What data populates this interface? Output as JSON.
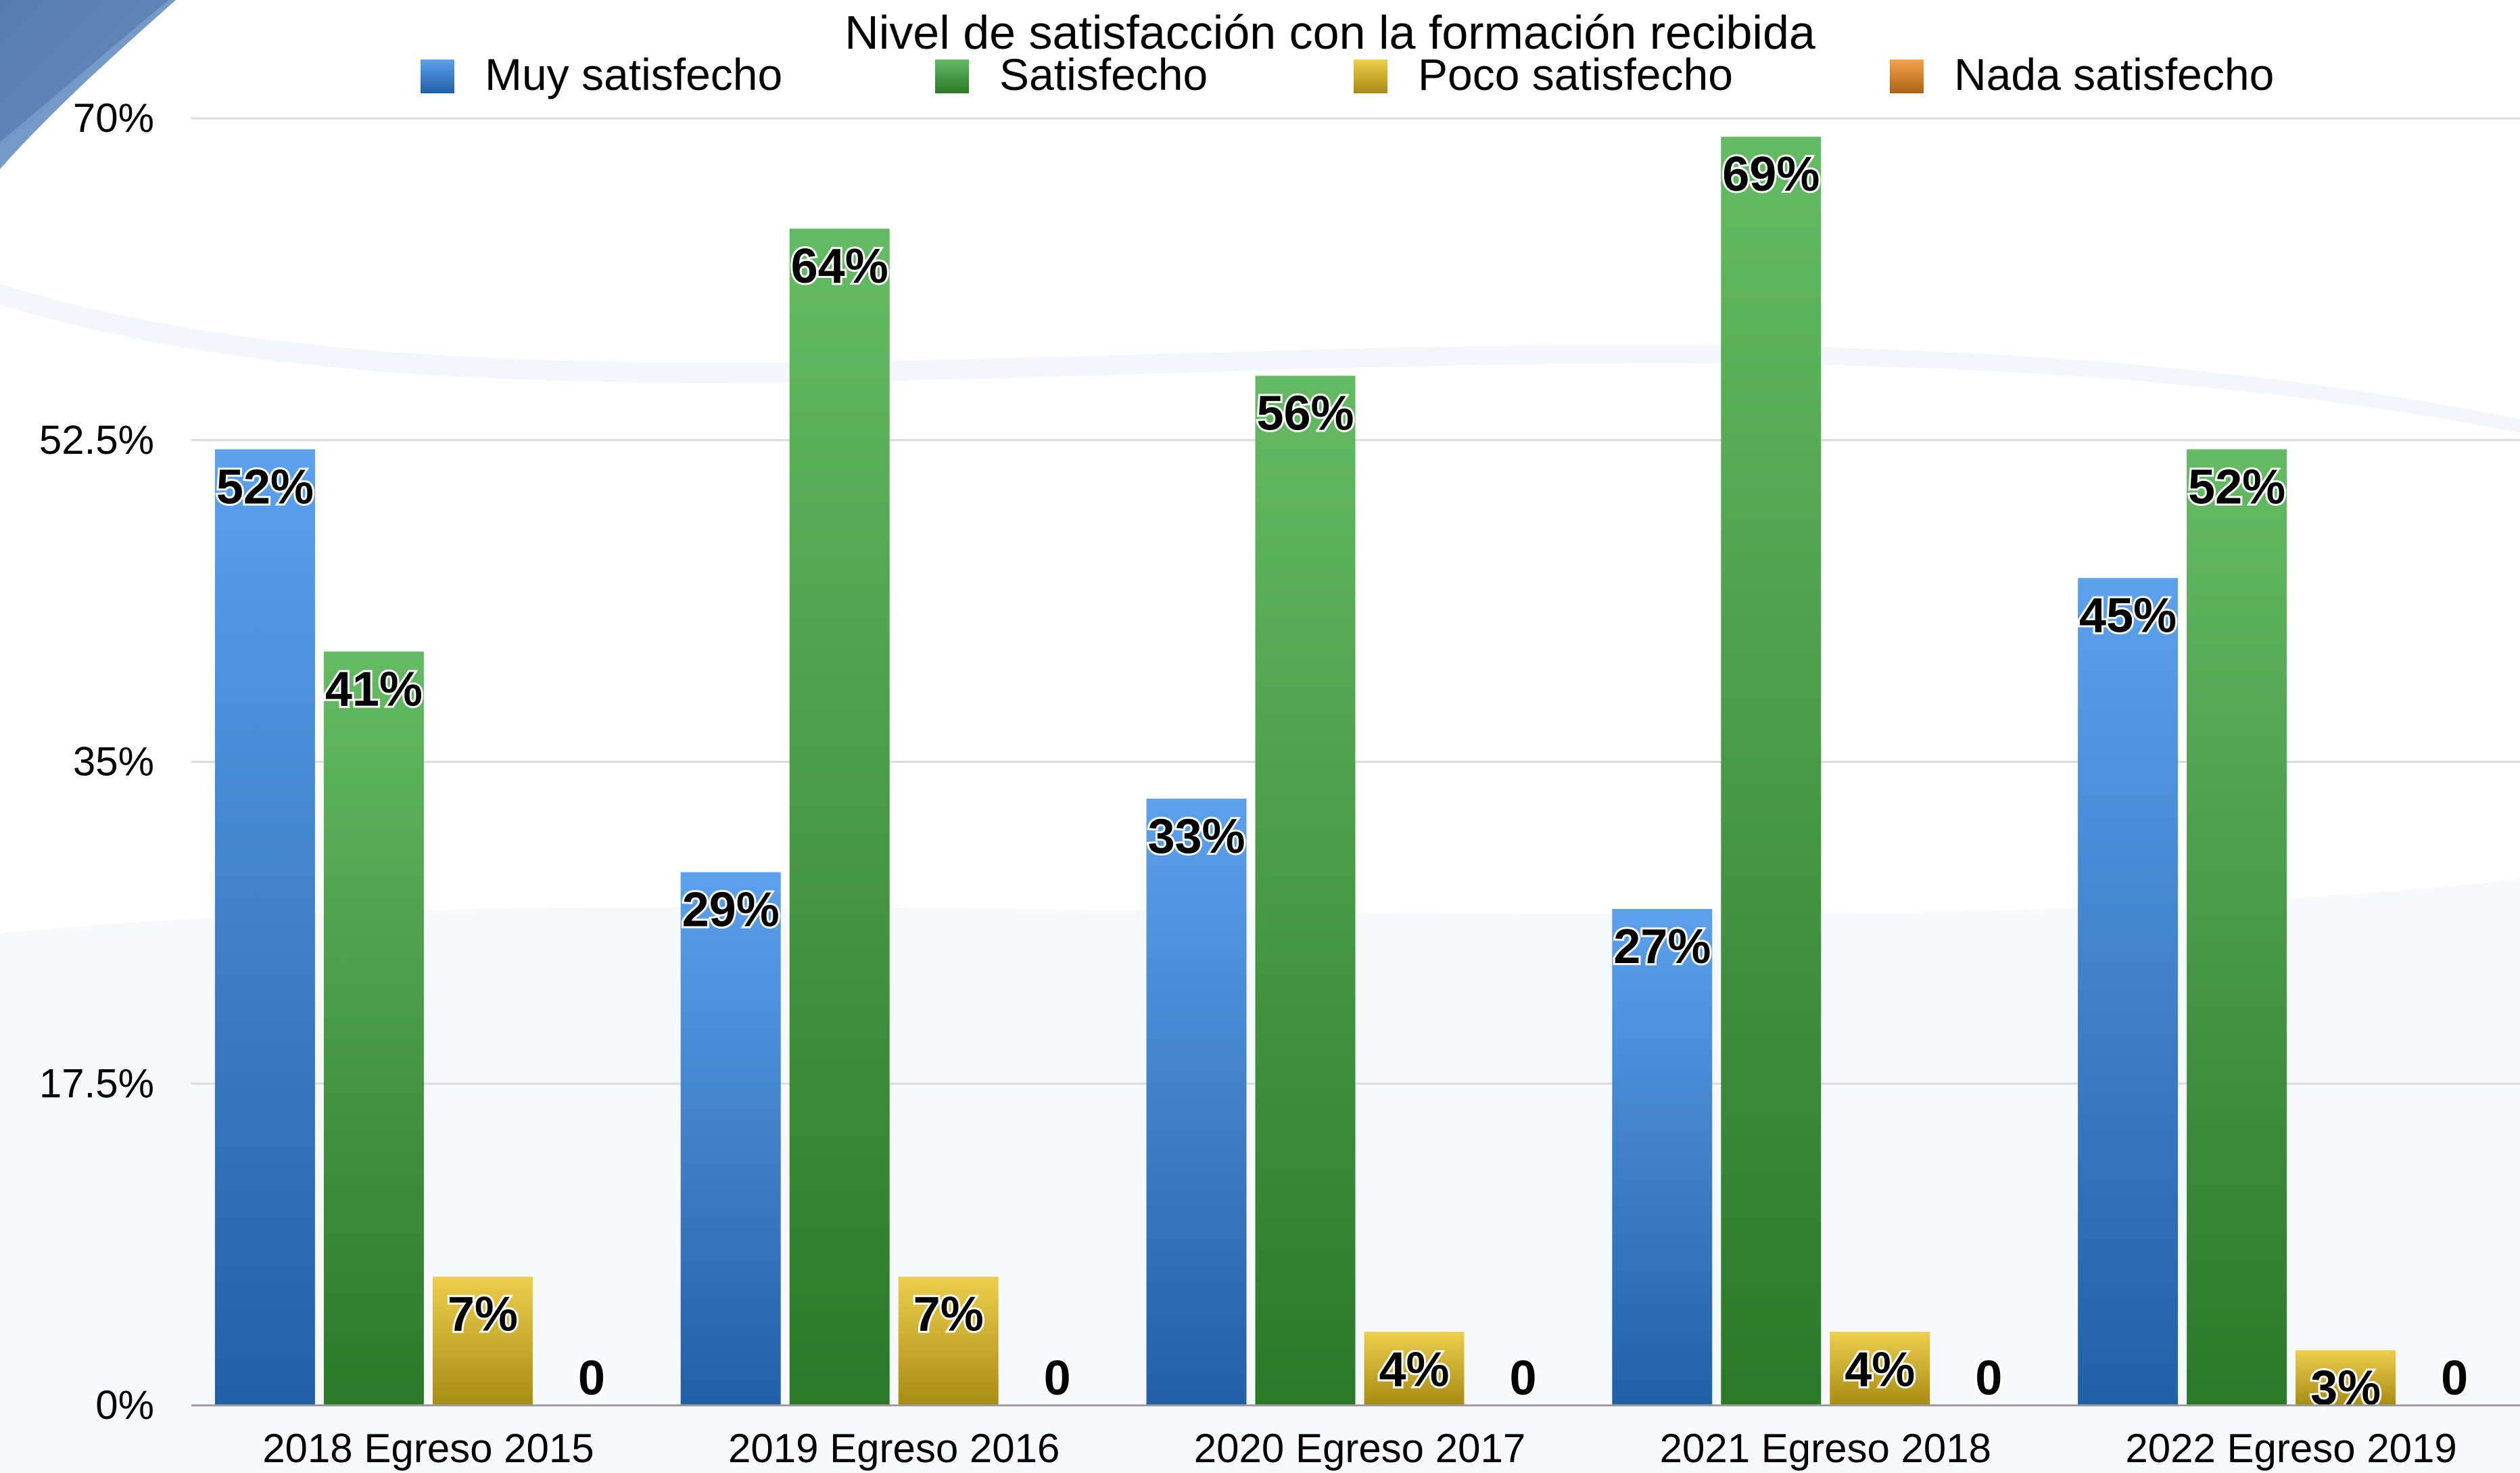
{
  "chart_data": {
    "type": "bar",
    "title": "Nivel de satisfacción con la formación recibida",
    "categories": [
      "2018 Egreso 2015",
      "2019 Egreso 2016",
      "2020 Egreso 2017",
      "2021 Egreso 2018",
      "2022 Egreso 2019"
    ],
    "series": [
      {
        "name": "Muy satisfecho",
        "color": "#2e86e8",
        "values": [
          52,
          29,
          33,
          27,
          45
        ],
        "labels": [
          "52%",
          "29%",
          "33%",
          "27%",
          "45%"
        ]
      },
      {
        "name": "Satisfecho",
        "color": "#3aa838",
        "values": [
          41,
          64,
          56,
          69,
          52
        ],
        "labels": [
          "41%",
          "64%",
          "56%",
          "69%",
          "52%"
        ]
      },
      {
        "name": "Poco satisfecho",
        "color": "#e8c21a",
        "values": [
          7,
          7,
          4,
          4,
          3
        ],
        "labels": [
          "7%",
          "7%",
          "4%",
          "4%",
          "3%"
        ]
      },
      {
        "name": "Nada satisfecho",
        "color": "#f08a1a",
        "values": [
          0,
          0,
          0,
          0,
          0
        ],
        "labels": [
          "0",
          "0",
          "0",
          "0",
          "0"
        ]
      }
    ],
    "ylim": [
      0,
      70
    ],
    "yticks": [
      0,
      17.5,
      35,
      52.5,
      70
    ],
    "ytick_labels": [
      "0%",
      "17.5%",
      "35%",
      "52.5%",
      "70%"
    ],
    "grid": true,
    "legend": "top"
  }
}
